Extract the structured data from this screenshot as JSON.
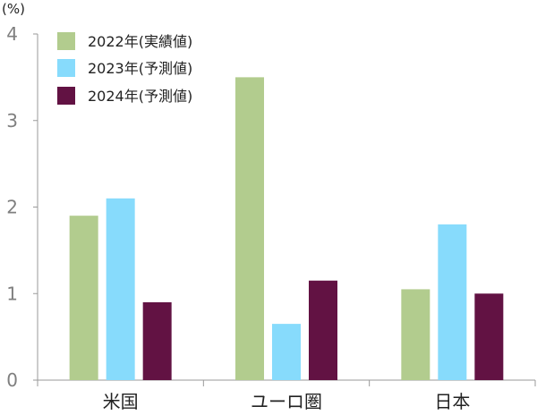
{
  "chart_data": {
    "type": "bar",
    "unit_label": "(%)",
    "categories": [
      "米国",
      "ユーロ圏",
      "日本"
    ],
    "series": [
      {
        "name": "2022年(実績値)",
        "color": "#b2cc8e",
        "values": [
          1.9,
          3.5,
          1.05
        ]
      },
      {
        "name": "2023年(予測値)",
        "color": "#87dbfc",
        "values": [
          2.1,
          0.65,
          1.8
        ]
      },
      {
        "name": "2024年(予測値)",
        "color": "#621243",
        "values": [
          0.9,
          1.15,
          1.0
        ]
      }
    ],
    "ylim": [
      0,
      4
    ],
    "yticks": [
      "0",
      "1",
      "2",
      "3",
      "4"
    ],
    "grid": false,
    "legend_position": "top-left"
  }
}
